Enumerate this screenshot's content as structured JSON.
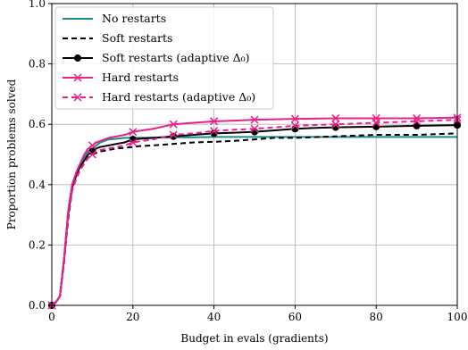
{
  "chart_data": {
    "type": "line",
    "xlabel": "Budget in evals (gradients)",
    "ylabel": "Proportion problems solved",
    "xlim": [
      0,
      100
    ],
    "ylim": [
      0,
      1
    ],
    "x_ticks": [
      "0",
      "20",
      "40",
      "60",
      "80",
      "100"
    ],
    "y_ticks": [
      "0.0",
      "0.2",
      "0.4",
      "0.6",
      "0.8",
      "1.0"
    ],
    "grid": true,
    "legend_position": "top-left",
    "series": [
      {
        "name": "No restarts",
        "color": "#1a8a8a",
        "line_style": "solid",
        "marker": "none",
        "x": [
          0,
          1,
          2,
          3,
          4,
          5,
          6,
          7,
          8,
          9,
          10,
          11,
          12,
          13,
          14,
          16,
          18,
          20,
          25,
          30,
          35,
          40,
          45,
          50,
          60,
          70,
          80,
          90,
          100
        ],
        "y": [
          0.0,
          0.01,
          0.03,
          0.15,
          0.3,
          0.39,
          0.43,
          0.46,
          0.49,
          0.51,
          0.52,
          0.53,
          0.54,
          0.545,
          0.55,
          0.552,
          0.555,
          0.555,
          0.556,
          0.557,
          0.557,
          0.558,
          0.558,
          0.558,
          0.558,
          0.558,
          0.558,
          0.558,
          0.558
        ]
      },
      {
        "name": "Soft restarts",
        "color": "#000000",
        "line_style": "dashed",
        "marker": "none",
        "x": [
          0,
          1,
          2,
          3,
          4,
          5,
          6,
          7,
          8,
          9,
          10,
          11,
          12,
          14,
          16,
          18,
          20,
          22,
          25,
          30,
          35,
          40,
          45,
          50,
          55,
          60,
          70,
          80,
          90,
          100
        ],
        "y": [
          0.0,
          0.01,
          0.03,
          0.14,
          0.28,
          0.38,
          0.42,
          0.45,
          0.47,
          0.49,
          0.5,
          0.505,
          0.51,
          0.515,
          0.52,
          0.522,
          0.525,
          0.528,
          0.53,
          0.535,
          0.54,
          0.542,
          0.545,
          0.55,
          0.555,
          0.555,
          0.56,
          0.565,
          0.565,
          0.57
        ]
      },
      {
        "name": "Soft restarts (adaptive Δ₀)",
        "color": "#000000",
        "line_style": "solid",
        "marker": "circle",
        "x": [
          0,
          1,
          2,
          3,
          4,
          5,
          6,
          7,
          8,
          9,
          10,
          11,
          12,
          14,
          16,
          18,
          20,
          22,
          25,
          30,
          35,
          40,
          45,
          50,
          55,
          60,
          65,
          70,
          80,
          90,
          100
        ],
        "y": [
          0.0,
          0.01,
          0.03,
          0.15,
          0.3,
          0.39,
          0.43,
          0.46,
          0.48,
          0.5,
          0.51,
          0.52,
          0.525,
          0.53,
          0.535,
          0.54,
          0.55,
          0.552,
          0.555,
          0.56,
          0.565,
          0.57,
          0.572,
          0.575,
          0.58,
          0.585,
          0.588,
          0.59,
          0.592,
          0.595,
          0.597
        ]
      },
      {
        "name": "Hard restarts",
        "color": "#e8208a",
        "line_style": "solid",
        "marker": "x",
        "x": [
          0,
          1,
          2,
          3,
          4,
          5,
          6,
          7,
          8,
          9,
          10,
          11,
          12,
          14,
          16,
          18,
          20,
          25,
          30,
          35,
          40,
          45,
          50,
          60,
          70,
          80,
          90,
          100
        ],
        "y": [
          0.0,
          0.01,
          0.03,
          0.15,
          0.31,
          0.4,
          0.44,
          0.47,
          0.5,
          0.52,
          0.53,
          0.54,
          0.545,
          0.555,
          0.56,
          0.565,
          0.575,
          0.585,
          0.6,
          0.605,
          0.61,
          0.612,
          0.615,
          0.618,
          0.62,
          0.62,
          0.62,
          0.622
        ]
      },
      {
        "name": "Hard restarts (adaptive Δ₀)",
        "color": "#e8208a",
        "line_style": "dashed",
        "marker": "x",
        "x": [
          0,
          1,
          2,
          3,
          4,
          5,
          6,
          7,
          8,
          9,
          10,
          11,
          12,
          14,
          16,
          18,
          20,
          25,
          30,
          35,
          40,
          45,
          50,
          55,
          60,
          70,
          80,
          90,
          100
        ],
        "y": [
          0.0,
          0.01,
          0.03,
          0.14,
          0.29,
          0.38,
          0.42,
          0.45,
          0.47,
          0.49,
          0.5,
          0.51,
          0.515,
          0.52,
          0.525,
          0.53,
          0.54,
          0.55,
          0.565,
          0.57,
          0.578,
          0.582,
          0.585,
          0.59,
          0.595,
          0.6,
          0.605,
          0.61,
          0.615
        ]
      }
    ]
  }
}
